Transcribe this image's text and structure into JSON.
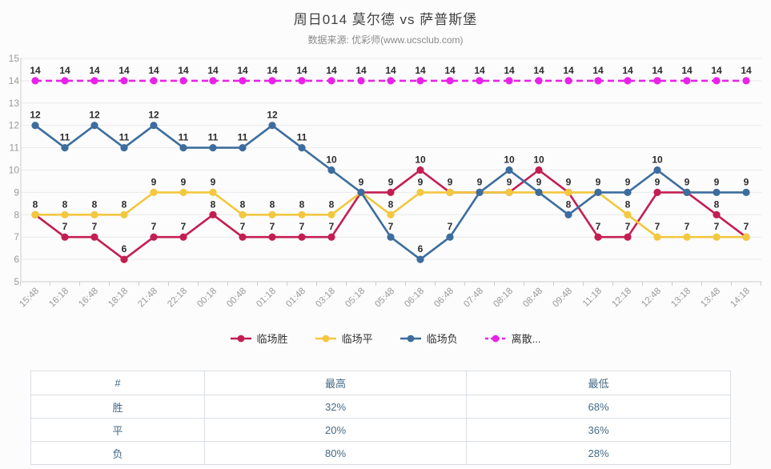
{
  "page": {
    "title": "周日014 莫尔德 vs 萨普斯堡",
    "subtitle": "数据来源: 优彩师(www.ucsclub.com)"
  },
  "chart_data": {
    "type": "line",
    "title": "周日014 莫尔德 vs 萨普斯堡",
    "subtitle": "数据来源: 优彩师(www.ucsclub.com)",
    "categories": [
      "15:48",
      "16:18",
      "16:48",
      "18:18",
      "21:48",
      "22:18",
      "00:18",
      "00:48",
      "01:18",
      "01:48",
      "03:18",
      "05:18",
      "05:48",
      "06:18",
      "06:48",
      "07:48",
      "08:18",
      "08:48",
      "09:48",
      "11:18",
      "12:18",
      "12:48",
      "13:18",
      "13:48",
      "14:18"
    ],
    "series": [
      {
        "name": "临场胜",
        "color": "#c31e52",
        "dashed": false,
        "values": [
          8,
          7,
          7,
          6,
          7,
          7,
          8,
          7,
          7,
          7,
          7,
          9,
          9,
          10,
          9,
          9,
          9,
          10,
          9,
          7,
          7,
          9,
          9,
          8,
          7
        ]
      },
      {
        "name": "临场平",
        "color": "#f3c73f",
        "dashed": false,
        "values": [
          8,
          8,
          8,
          8,
          9,
          9,
          9,
          8,
          8,
          8,
          8,
          9,
          8,
          9,
          9,
          9,
          9,
          9,
          9,
          9,
          8,
          7,
          7,
          7,
          7
        ]
      },
      {
        "name": "临场负",
        "color": "#3c6d9e",
        "dashed": false,
        "values": [
          12,
          11,
          12,
          11,
          12,
          11,
          11,
          11,
          12,
          11,
          10,
          9,
          7,
          6,
          7,
          9,
          10,
          9,
          8,
          9,
          9,
          10,
          9,
          9,
          9
        ]
      },
      {
        "name": "离散...",
        "color": "#e822e8",
        "dashed": true,
        "values": [
          14,
          14,
          14,
          14,
          14,
          14,
          14,
          14,
          14,
          14,
          14,
          14,
          14,
          14,
          14,
          14,
          14,
          14,
          14,
          14,
          14,
          14,
          14,
          14,
          14
        ]
      }
    ],
    "ylim": [
      5,
      15
    ],
    "yticks": [
      5,
      6,
      7,
      8,
      9,
      10,
      11,
      12,
      13,
      14,
      15
    ],
    "grid": true,
    "point_labels": true,
    "legend_position": "bottom",
    "axis_label_color": "#999999",
    "grid_color": "#e9e9e9",
    "axis_line_color": "#cccccc",
    "point_label_color": "#2b2b2b"
  },
  "table": {
    "headers": [
      "#",
      "最高",
      "最低"
    ],
    "rows": [
      {
        "label": "胜",
        "high": "32%",
        "low": "68%"
      },
      {
        "label": "平",
        "high": "20%",
        "low": "36%"
      },
      {
        "label": "负",
        "high": "80%",
        "low": "28%"
      }
    ]
  }
}
